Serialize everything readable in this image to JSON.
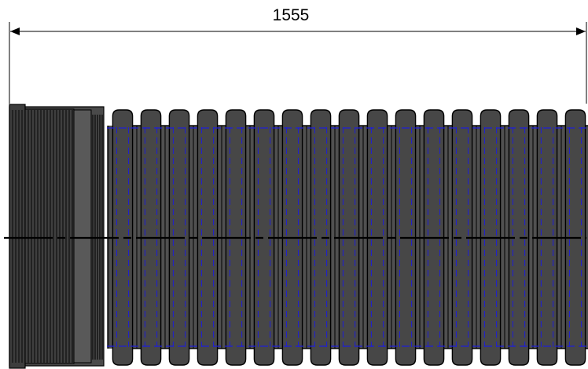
{
  "dimension": {
    "length_label": "1555"
  },
  "pipe": {
    "corrugation_count": 17
  },
  "colors": {
    "pipe_body": "#505050",
    "pipe_crest": "#474747",
    "outline": "#000000",
    "hidden_line": "#1f1fd6",
    "centerline": "#000000",
    "background": "#ffffff"
  }
}
